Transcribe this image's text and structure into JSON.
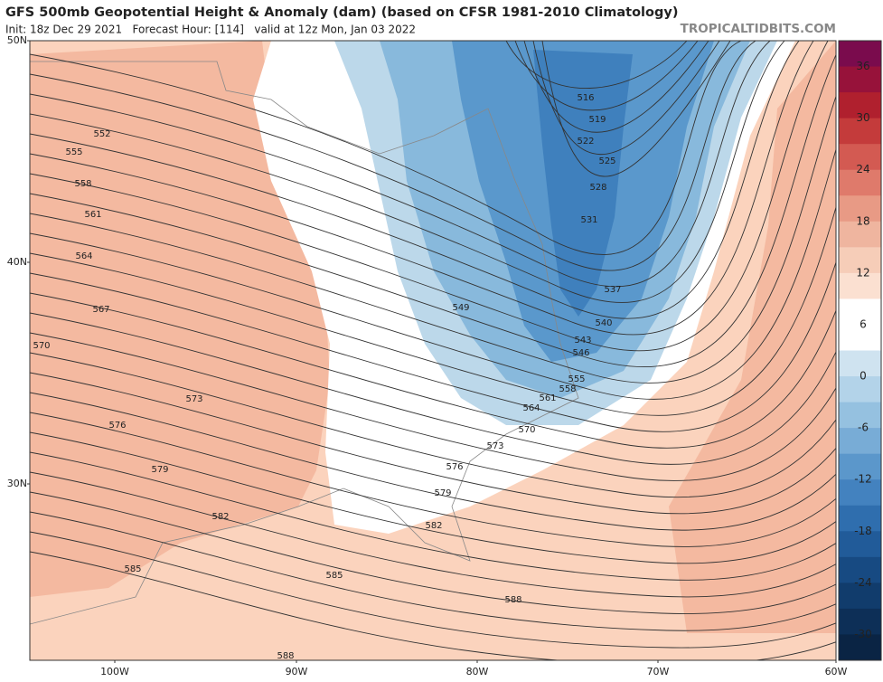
{
  "header": {
    "title": "GFS 500mb Geopotential Height & Anomaly (dam) (based on CFSR 1981-2010 Climatology)",
    "subtitle": "Init: 18z Dec 29 2021   Forecast Hour: [114]   valid at 12z Mon, Jan 03 2022",
    "site": "TROPICALTIDBITS.COM"
  },
  "map": {
    "latitude_labels": [
      "50N",
      "40N",
      "30N"
    ],
    "longitude_labels": [
      "100W",
      "90W",
      "80W",
      "70W",
      "60W"
    ],
    "contour_labels": [
      552,
      555,
      558,
      561,
      564,
      567,
      570,
      573,
      576,
      579,
      582,
      585,
      585,
      588,
      588,
      516,
      519,
      522,
      525,
      528,
      531,
      537,
      540,
      543,
      546,
      549,
      555,
      558,
      561,
      564,
      570,
      573,
      576,
      579,
      582
    ]
  },
  "colorbar": {
    "ticks": [
      36,
      30,
      24,
      18,
      12,
      6,
      0,
      -6,
      -12,
      -18,
      -24,
      -30,
      -36
    ]
  }
}
